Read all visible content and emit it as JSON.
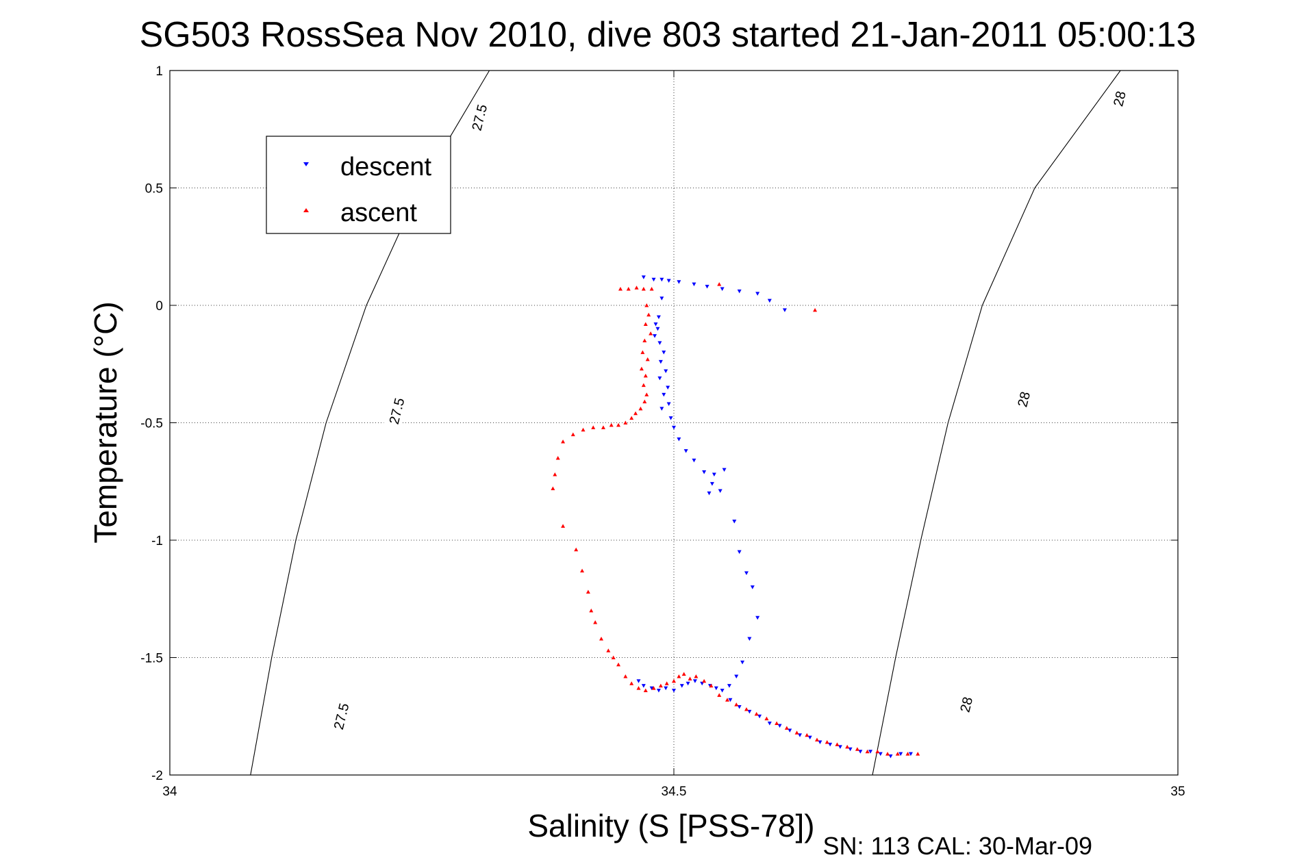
{
  "figure": {
    "title": "SG503 RossSea Nov 2010, dive 803 started 21-Jan-2011 05:00:13",
    "footer": "SN: 113  CAL: 30-Mar-09"
  },
  "chart_data": {
    "type": "scatter",
    "title": "SG503 RossSea Nov 2010, dive 803 started 21-Jan-2011 05:00:13",
    "xlabel": "Salinity (S [PSS-78])",
    "ylabel": "Temperature (°C)",
    "xlim": [
      34,
      35
    ],
    "ylim": [
      -2,
      1
    ],
    "xticks": [
      34,
      34.5,
      35
    ],
    "xtick_labels": [
      "34",
      "34.5",
      "35"
    ],
    "yticks": [
      1,
      0.5,
      0,
      -0.5,
      -1,
      -1.5,
      -2
    ],
    "ytick_labels": [
      "1",
      "0.5",
      "0",
      "-0.5",
      "-1",
      "-1.5",
      "-2"
    ],
    "grid": true,
    "legend": {
      "placement": "top-left",
      "entries": [
        "descent",
        "ascent"
      ]
    },
    "contours": [
      {
        "label": "27.5",
        "color": "#000000",
        "points": [
          [
            34.317,
            1.0
          ],
          [
            34.248,
            0.5
          ],
          [
            34.195,
            0.0
          ],
          [
            34.155,
            -0.5
          ],
          [
            34.125,
            -1.0
          ],
          [
            34.101,
            -1.5
          ],
          [
            34.08,
            -2.0
          ]
        ]
      },
      {
        "label": "28",
        "color": "#000000",
        "points": [
          [
            34.943,
            1.0
          ],
          [
            34.858,
            0.5
          ],
          [
            34.806,
            0.0
          ],
          [
            34.772,
            -0.5
          ],
          [
            34.745,
            -1.0
          ],
          [
            34.72,
            -1.5
          ],
          [
            34.697,
            -2.0
          ]
        ]
      }
    ],
    "contour_label_positions": [
      {
        "label": "27.5",
        "s": 34.307,
        "t": 0.8
      },
      {
        "label": "27.5",
        "s": 34.225,
        "t": -0.45
      },
      {
        "label": "27.5",
        "s": 34.17,
        "t": -1.75
      },
      {
        "label": "28",
        "s": 34.942,
        "t": 0.88
      },
      {
        "label": "28",
        "s": 34.847,
        "t": -0.4
      },
      {
        "label": "28",
        "s": 34.79,
        "t": -1.7
      }
    ],
    "series": [
      {
        "name": "descent",
        "color": "#0000ff",
        "marker": "triangle-down",
        "points": [
          [
            34.47,
            0.12
          ],
          [
            34.48,
            0.11
          ],
          [
            34.488,
            0.11
          ],
          [
            34.495,
            0.105
          ],
          [
            34.505,
            0.1
          ],
          [
            34.52,
            0.09
          ],
          [
            34.533,
            0.08
          ],
          [
            34.548,
            0.07
          ],
          [
            34.565,
            0.06
          ],
          [
            34.583,
            0.05
          ],
          [
            34.595,
            0.02
          ],
          [
            34.61,
            -0.02
          ],
          [
            34.488,
            0.03
          ],
          [
            34.485,
            -0.05
          ],
          [
            34.482,
            -0.08
          ],
          [
            34.484,
            -0.1
          ],
          [
            34.481,
            -0.13
          ],
          [
            34.486,
            -0.16
          ],
          [
            34.49,
            -0.2
          ],
          [
            34.487,
            -0.24
          ],
          [
            34.492,
            -0.28
          ],
          [
            34.486,
            -0.31
          ],
          [
            34.494,
            -0.35
          ],
          [
            34.49,
            -0.38
          ],
          [
            34.495,
            -0.42
          ],
          [
            34.488,
            -0.44
          ],
          [
            34.497,
            -0.48
          ],
          [
            34.5,
            -0.52
          ],
          [
            34.505,
            -0.57
          ],
          [
            34.512,
            -0.62
          ],
          [
            34.52,
            -0.66
          ],
          [
            34.53,
            -0.71
          ],
          [
            34.538,
            -0.76
          ],
          [
            34.546,
            -0.79
          ],
          [
            34.55,
            -0.7
          ],
          [
            34.54,
            -0.72
          ],
          [
            34.535,
            -0.8
          ],
          [
            34.56,
            -0.92
          ],
          [
            34.565,
            -1.05
          ],
          [
            34.572,
            -1.14
          ],
          [
            34.578,
            -1.2
          ],
          [
            34.583,
            -1.33
          ],
          [
            34.575,
            -1.42
          ],
          [
            34.568,
            -1.52
          ],
          [
            34.562,
            -1.58
          ],
          [
            34.555,
            -1.62
          ],
          [
            34.465,
            -1.6
          ],
          [
            34.47,
            -1.62
          ],
          [
            34.478,
            -1.63
          ],
          [
            34.485,
            -1.64
          ],
          [
            34.492,
            -1.63
          ],
          [
            34.5,
            -1.64
          ],
          [
            34.508,
            -1.62
          ],
          [
            34.514,
            -1.61
          ],
          [
            34.521,
            -1.6
          ],
          [
            34.528,
            -1.61
          ],
          [
            34.536,
            -1.62
          ],
          [
            34.542,
            -1.63
          ],
          [
            34.548,
            -1.64
          ],
          [
            34.556,
            -1.68
          ],
          [
            34.565,
            -1.71
          ],
          [
            34.575,
            -1.73
          ],
          [
            34.585,
            -1.75
          ],
          [
            34.595,
            -1.78
          ],
          [
            34.605,
            -1.79
          ],
          [
            34.615,
            -1.81
          ],
          [
            34.625,
            -1.83
          ],
          [
            34.635,
            -1.84
          ],
          [
            34.645,
            -1.86
          ],
          [
            34.655,
            -1.87
          ],
          [
            34.665,
            -1.88
          ],
          [
            34.675,
            -1.89
          ],
          [
            34.685,
            -1.9
          ],
          [
            34.695,
            -1.9
          ],
          [
            34.705,
            -1.91
          ],
          [
            34.715,
            -1.92
          ],
          [
            34.725,
            -1.91
          ],
          [
            34.735,
            -1.91
          ]
        ]
      },
      {
        "name": "ascent",
        "color": "#ff0000",
        "marker": "triangle-up",
        "points": [
          [
            34.447,
            0.07
          ],
          [
            34.455,
            0.07
          ],
          [
            34.463,
            0.075
          ],
          [
            34.47,
            0.07
          ],
          [
            34.478,
            0.07
          ],
          [
            34.545,
            0.09
          ],
          [
            34.64,
            -0.02
          ],
          [
            34.473,
            0.0
          ],
          [
            34.475,
            -0.04
          ],
          [
            34.472,
            -0.08
          ],
          [
            34.477,
            -0.12
          ],
          [
            34.471,
            -0.15
          ],
          [
            34.469,
            -0.2
          ],
          [
            34.474,
            -0.23
          ],
          [
            34.468,
            -0.27
          ],
          [
            34.472,
            -0.3
          ],
          [
            34.47,
            -0.34
          ],
          [
            34.473,
            -0.38
          ],
          [
            34.471,
            -0.41
          ],
          [
            34.467,
            -0.44
          ],
          [
            34.462,
            -0.46
          ],
          [
            34.458,
            -0.48
          ],
          [
            34.452,
            -0.5
          ],
          [
            34.445,
            -0.51
          ],
          [
            34.438,
            -0.51
          ],
          [
            34.43,
            -0.52
          ],
          [
            34.42,
            -0.52
          ],
          [
            34.41,
            -0.53
          ],
          [
            34.4,
            -0.55
          ],
          [
            34.39,
            -0.58
          ],
          [
            34.385,
            -0.65
          ],
          [
            34.382,
            -0.72
          ],
          [
            34.38,
            -0.78
          ],
          [
            34.39,
            -0.94
          ],
          [
            34.403,
            -1.04
          ],
          [
            34.409,
            -1.13
          ],
          [
            34.415,
            -1.22
          ],
          [
            34.418,
            -1.3
          ],
          [
            34.422,
            -1.35
          ],
          [
            34.428,
            -1.42
          ],
          [
            34.435,
            -1.47
          ],
          [
            34.44,
            -1.5
          ],
          [
            34.445,
            -1.53
          ],
          [
            34.452,
            -1.58
          ],
          [
            34.458,
            -1.61
          ],
          [
            34.465,
            -1.63
          ],
          [
            34.472,
            -1.64
          ],
          [
            34.48,
            -1.63
          ],
          [
            34.487,
            -1.62
          ],
          [
            34.493,
            -1.61
          ],
          [
            34.5,
            -1.6
          ],
          [
            34.505,
            -1.58
          ],
          [
            34.51,
            -1.57
          ],
          [
            34.516,
            -1.59
          ],
          [
            34.522,
            -1.58
          ],
          [
            34.53,
            -1.6
          ],
          [
            34.537,
            -1.62
          ],
          [
            34.545,
            -1.66
          ],
          [
            34.553,
            -1.68
          ],
          [
            34.562,
            -1.7
          ],
          [
            34.572,
            -1.72
          ],
          [
            34.582,
            -1.74
          ],
          [
            34.592,
            -1.76
          ],
          [
            34.602,
            -1.78
          ],
          [
            34.612,
            -1.8
          ],
          [
            34.622,
            -1.82
          ],
          [
            34.632,
            -1.83
          ],
          [
            34.642,
            -1.85
          ],
          [
            34.652,
            -1.86
          ],
          [
            34.662,
            -1.87
          ],
          [
            34.672,
            -1.88
          ],
          [
            34.682,
            -1.89
          ],
          [
            34.692,
            -1.9
          ],
          [
            34.702,
            -1.9
          ],
          [
            34.712,
            -1.91
          ],
          [
            34.722,
            -1.91
          ],
          [
            34.732,
            -1.91
          ],
          [
            34.742,
            -1.91
          ]
        ]
      }
    ]
  }
}
